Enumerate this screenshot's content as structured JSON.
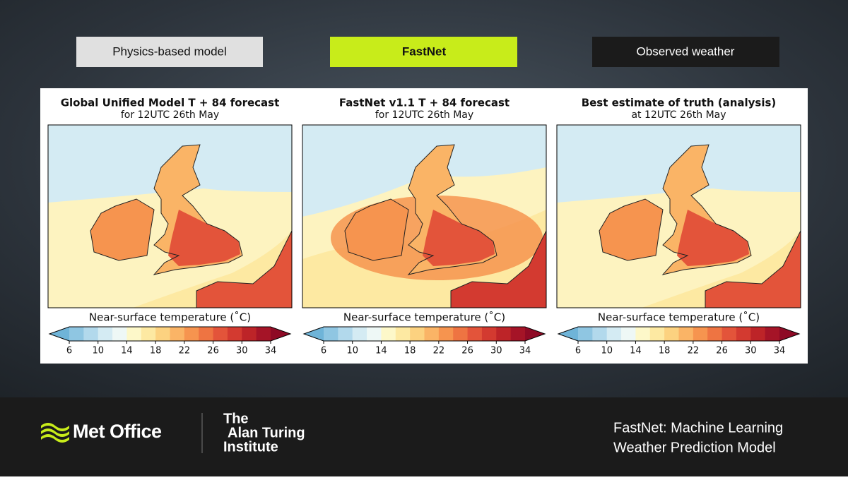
{
  "tabs": [
    "Physics-based model",
    "FastNet",
    "Observed weather"
  ],
  "panels": [
    {
      "title": "Global Unified Model T + 84 forecast",
      "subtitle": "for 12UTC 26th May"
    },
    {
      "title": "FastNet v1.1 T + 84 forecast",
      "subtitle": "for 12UTC 26th May"
    },
    {
      "title": "Best estimate of truth (analysis)",
      "subtitle": "at 12UTC 26th May"
    }
  ],
  "colorbar": {
    "label": "Near-surface temperature (˚C)",
    "ticks": [
      6,
      10,
      14,
      18,
      22,
      26,
      30,
      34
    ],
    "colors": [
      "#6fb4d8",
      "#8fc6e2",
      "#b2d9ec",
      "#d4ebf3",
      "#eef8f6",
      "#fdf8c9",
      "#fde9a2",
      "#fcd280",
      "#fab466",
      "#f6944f",
      "#ee7442",
      "#e3543a",
      "#d33a30",
      "#bd2428",
      "#a51427",
      "#8e0a25"
    ]
  },
  "footer": {
    "met_office": "Met Office",
    "turing": [
      "The",
      "Alan Turing",
      "Institute"
    ],
    "caption": [
      "FastNet: Machine Learning",
      "Weather Prediction Model"
    ]
  }
}
